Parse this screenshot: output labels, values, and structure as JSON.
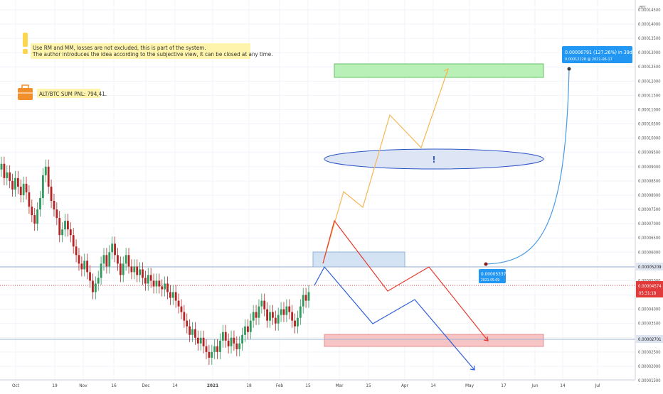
{
  "chart_data": {
    "type": "candlestick",
    "y_unit": "BTC",
    "ylim": [
      1.5e-05,
      0.000145
    ],
    "y_ticks": [
      "0.00001500",
      "0.00002000",
      "0.00002500",
      "0.00003000",
      "0.00003500",
      "0.00004000",
      "0.00004500",
      "0.00005000",
      "0.00005500",
      "0.00006000",
      "0.00006500",
      "0.00007000",
      "0.00007500",
      "0.00008000",
      "0.00008500",
      "0.00009000",
      "0.00009500",
      "0.00010000",
      "0.00010500",
      "0.00011000",
      "0.00011500",
      "0.00012000",
      "0.00012500",
      "0.00013000",
      "0.00013500",
      "0.00014000",
      "0.00014500"
    ],
    "x_ticks": [
      "Oct",
      "19",
      "Nov",
      "16",
      "Dec",
      "14",
      "2021",
      "18",
      "Feb",
      "15",
      "Mar",
      "15",
      "Apr",
      "14",
      "May",
      "17",
      "Jun",
      "14",
      "Jul"
    ],
    "x_tick_bold": "2021",
    "horizontal_lines": [
      {
        "value": 5.209e-05,
        "label": "0.00005209",
        "color": "#9db3d4"
      },
      {
        "value": 2.701e-05,
        "label": "0.00002701",
        "color": "#9db3d4"
      }
    ],
    "last_price": {
      "value": 4.574e-05,
      "label": "0.00004574",
      "countdown": "05:31:18",
      "color": "#e03a3a"
    },
    "zones": [
      {
        "name": "target-zone",
        "from": 0.000118,
        "to": 0.000123,
        "color": "#7ee07e"
      },
      {
        "name": "entry-zone",
        "from": 5.2e-05,
        "to": 5.7e-05,
        "color": "#a9c8ea"
      },
      {
        "name": "risk-zone",
        "from": 2.5e-05,
        "to": 2.95e-05,
        "color": "#f2a2a2"
      }
    ],
    "notes": {
      "warning_line1": "Use RM and MM, losses are not excluded, this is part of the system.",
      "warning_line2": "The author introduces the idea according to the subjective view, it can be closed at any time.",
      "pnl": "ALT/BTC SUM PNL: 794,41.",
      "ellipse_mark": "!"
    },
    "projection": {
      "start_label": "0.00005337",
      "start_date": "2021-05-09",
      "end_label1": "0.00006791 (127.26%) in 39d",
      "end_label2": "0.00012128 @ 2021-06-17"
    },
    "scenarios": {
      "orange": [
        [
          5.3e-05
        ],
        [
          7.8e-05
        ],
        [
          7.3e-05
        ],
        [
          0.000105
        ],
        [
          9.4e-05
        ],
        [
          0.000121
        ]
      ],
      "red": [
        [
          5.3e-05
        ],
        [
          6.8e-05
        ],
        [
          4.3e-05
        ],
        [
          5.1e-05
        ],
        [
          2.7e-05
        ]
      ],
      "blue": [
        [
          4.4e-05
        ],
        [
          5.2e-05
        ],
        [
          3.2e-05
        ],
        [
          4.1e-05
        ],
        [
          1.6e-05
        ]
      ]
    },
    "candles_open_close": [
      [
        8.9,
        9.1
      ],
      [
        9.1,
        8.6
      ],
      [
        8.6,
        8.8
      ],
      [
        8.8,
        8.5
      ],
      [
        8.5,
        8.2
      ],
      [
        8.2,
        8.6
      ],
      [
        8.6,
        8.3
      ],
      [
        8.3,
        8.0
      ],
      [
        8.0,
        8.4
      ],
      [
        8.4,
        8.1
      ],
      [
        8.1,
        7.6
      ],
      [
        7.6,
        7.3
      ],
      [
        7.3,
        7.0
      ],
      [
        7.0,
        7.5
      ],
      [
        7.5,
        7.9
      ],
      [
        7.9,
        8.7
      ],
      [
        8.7,
        9.0
      ],
      [
        9.0,
        8.3
      ],
      [
        8.3,
        7.8
      ],
      [
        7.8,
        7.5
      ],
      [
        7.5,
        7.2
      ],
      [
        7.2,
        6.6
      ],
      [
        6.6,
        6.8
      ],
      [
        6.8,
        7.1
      ],
      [
        7.1,
        6.8
      ],
      [
        6.8,
        6.6
      ],
      [
        6.6,
        6.2
      ],
      [
        6.2,
        5.9
      ],
      [
        5.9,
        5.6
      ],
      [
        5.6,
        5.4
      ],
      [
        5.4,
        5.7
      ],
      [
        5.7,
        5.3
      ],
      [
        5.3,
        5.0
      ],
      [
        5.0,
        4.6
      ],
      [
        4.6,
        4.9
      ],
      [
        4.9,
        5.1
      ],
      [
        5.1,
        5.6
      ],
      [
        5.6,
        5.9
      ],
      [
        5.9,
        5.5
      ],
      [
        5.5,
        6.0
      ],
      [
        6.0,
        6.3
      ],
      [
        6.3,
        5.9
      ],
      [
        5.9,
        5.6
      ],
      [
        5.6,
        5.2
      ],
      [
        5.2,
        5.6
      ],
      [
        5.6,
        5.9
      ],
      [
        5.9,
        5.5
      ],
      [
        5.5,
        5.3
      ],
      [
        5.3,
        5.5
      ],
      [
        5.5,
        5.2
      ],
      [
        5.2,
        5.4
      ],
      [
        5.4,
        5.1
      ],
      [
        5.1,
        4.9
      ],
      [
        4.9,
        5.2
      ],
      [
        5.2,
        5.0
      ],
      [
        5.0,
        4.8
      ],
      [
        4.8,
        5.0
      ],
      [
        5.0,
        4.8
      ],
      [
        4.8,
        4.7
      ],
      [
        4.7,
        4.9
      ],
      [
        4.9,
        4.6
      ],
      [
        4.6,
        4.4
      ],
      [
        4.4,
        4.6
      ],
      [
        4.6,
        4.3
      ],
      [
        4.3,
        4.1
      ],
      [
        4.1,
        3.9
      ],
      [
        3.9,
        3.6
      ],
      [
        3.6,
        3.4
      ],
      [
        3.4,
        3.1
      ],
      [
        3.1,
        3.3
      ],
      [
        3.3,
        3.0
      ],
      [
        3.0,
        2.8
      ],
      [
        2.8,
        3.0
      ],
      [
        3.0,
        2.7
      ],
      [
        2.7,
        2.5
      ],
      [
        2.5,
        2.3
      ],
      [
        2.3,
        2.5
      ],
      [
        2.5,
        2.7
      ],
      [
        2.7,
        2.5
      ],
      [
        2.5,
        2.9
      ],
      [
        2.9,
        3.2
      ],
      [
        3.2,
        2.9
      ],
      [
        2.9,
        2.7
      ],
      [
        2.7,
        3.0
      ],
      [
        3.0,
        2.8
      ],
      [
        2.8,
        2.6
      ],
      [
        2.6,
        2.8
      ],
      [
        2.8,
        3.1
      ],
      [
        3.1,
        3.4
      ],
      [
        3.4,
        3.2
      ],
      [
        3.2,
        3.6
      ],
      [
        3.6,
        3.9
      ],
      [
        3.9,
        3.7
      ],
      [
        3.7,
        4.1
      ],
      [
        4.1,
        4.3
      ],
      [
        4.3,
        4.0
      ],
      [
        4.0,
        3.6
      ],
      [
        3.6,
        3.9
      ],
      [
        3.9,
        3.7
      ],
      [
        3.7,
        3.5
      ],
      [
        3.5,
        3.8
      ],
      [
        3.8,
        4.0
      ],
      [
        4.0,
        3.8
      ],
      [
        3.8,
        4.1
      ],
      [
        4.1,
        3.9
      ],
      [
        3.9,
        3.6
      ],
      [
        3.6,
        3.4
      ],
      [
        3.4,
        3.7
      ],
      [
        3.7,
        4.1
      ],
      [
        4.1,
        4.5
      ],
      [
        4.5,
        4.3
      ],
      [
        4.3,
        4.6
      ]
    ]
  }
}
